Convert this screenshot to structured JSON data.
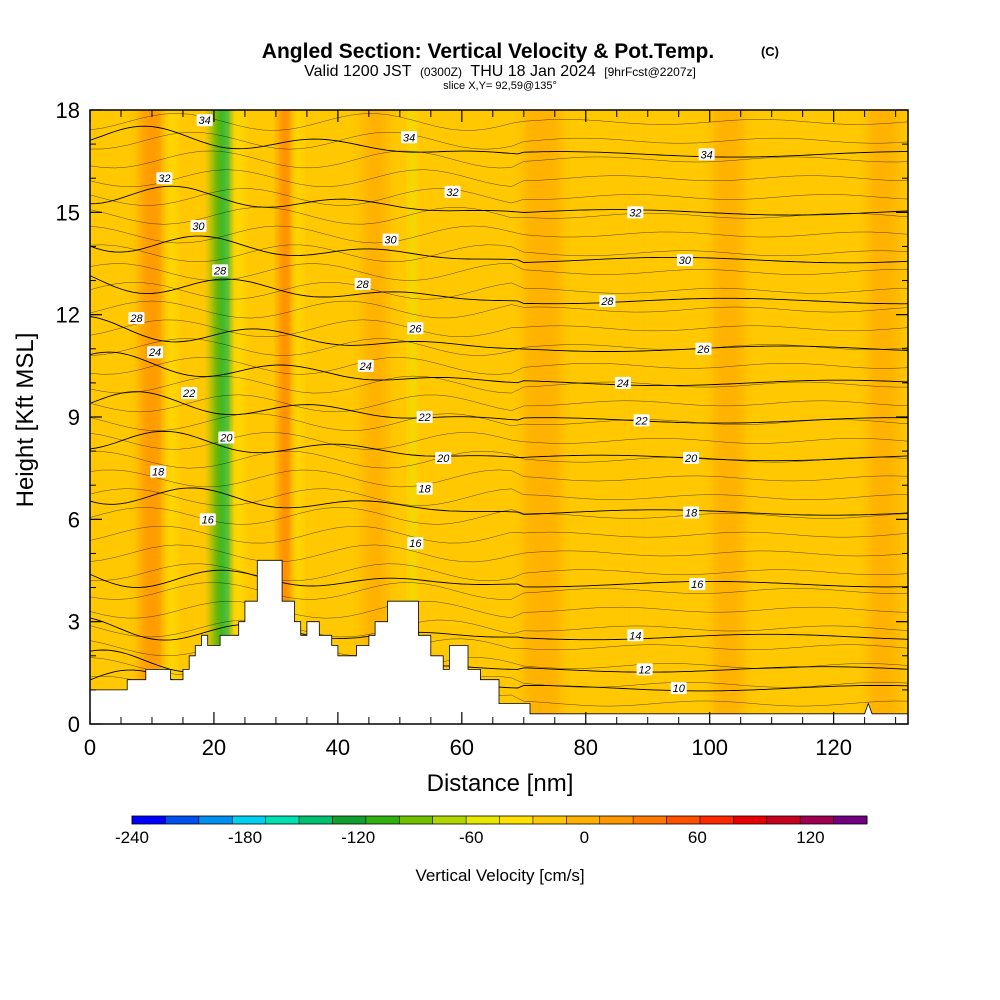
{
  "chart_data": {
    "type": "heatmap",
    "title": "Angled Section: Vertical Velocity & Pot.Temp.",
    "title_unit": "(C)",
    "subtitle": {
      "valid": "Valid 1200 JST",
      "utc": "(0300Z)",
      "date": "THU 18 Jan 2024",
      "forecast": "[9hrFcst@2207z]"
    },
    "slice_text": "slice X,Y= 92,59@135°",
    "xlabel": "Distance [nm]",
    "ylabel": "Height [Kft MSL]",
    "xlim": [
      0,
      132
    ],
    "ylim": [
      0,
      18
    ],
    "x_ticks": [
      0,
      20,
      40,
      60,
      80,
      100,
      120
    ],
    "y_ticks": [
      0,
      3,
      6,
      9,
      12,
      15,
      18
    ],
    "colorbar": {
      "label": "Vertical Velocity [cm/s]",
      "min": -240,
      "max": 150,
      "step": 20,
      "tick_values": [
        -240,
        -180,
        -120,
        -60,
        0,
        60,
        120
      ],
      "colors": [
        "#0000ff",
        "#0050f0",
        "#0090f0",
        "#00d0f0",
        "#00e0b0",
        "#00c070",
        "#10a030",
        "#30b010",
        "#70c000",
        "#b0d800",
        "#e8e800",
        "#ffe000",
        "#ffc800",
        "#ffb000",
        "#ff9800",
        "#ff7800",
        "#ff5000",
        "#ff2800",
        "#e80000",
        "#c80020",
        "#a00050",
        "#700080"
      ]
    },
    "grid": false,
    "velocity_bands": [
      {
        "x": 10,
        "width": 4,
        "value": 55
      },
      {
        "x": 13,
        "width": 1.5,
        "value": -20
      },
      {
        "x": 21,
        "width": 2.4,
        "value": -100
      },
      {
        "x": 22,
        "width": 1,
        "value": -140
      },
      {
        "x": 24,
        "width": 1.5,
        "value": -20
      },
      {
        "x": 31.5,
        "width": 1.8,
        "value": 60
      },
      {
        "x": 33.5,
        "width": 1.2,
        "value": -20
      },
      {
        "x": 46,
        "width": 4,
        "value": 30
      },
      {
        "x": 52,
        "width": 1,
        "value": -30
      },
      {
        "x": 73,
        "width": 6,
        "value": 30
      },
      {
        "x": 85,
        "width": 6,
        "value": 12
      },
      {
        "x": 103,
        "width": 5,
        "value": 25
      },
      {
        "x": 128,
        "width": 5,
        "value": 25
      }
    ],
    "terrain": [
      [
        0,
        1.0
      ],
      [
        6,
        1.0
      ],
      [
        6,
        1.3
      ],
      [
        9,
        1.3
      ],
      [
        9,
        1.6
      ],
      [
        13,
        1.6
      ],
      [
        13,
        1.3
      ],
      [
        15,
        1.3
      ],
      [
        15,
        1.6
      ],
      [
        16,
        1.6
      ],
      [
        16,
        2.0
      ],
      [
        17,
        2.0
      ],
      [
        17,
        2.3
      ],
      [
        18,
        2.3
      ],
      [
        18,
        2.6
      ],
      [
        19,
        2.6
      ],
      [
        19,
        2.3
      ],
      [
        21,
        2.3
      ],
      [
        21,
        2.6
      ],
      [
        24,
        2.6
      ],
      [
        24,
        3.0
      ],
      [
        25,
        3.0
      ],
      [
        25,
        3.6
      ],
      [
        27,
        3.6
      ],
      [
        27,
        4.8
      ],
      [
        31,
        4.8
      ],
      [
        31,
        3.6
      ],
      [
        33,
        3.6
      ],
      [
        33,
        3.0
      ],
      [
        34,
        3.0
      ],
      [
        34,
        2.6
      ],
      [
        35,
        2.6
      ],
      [
        35,
        3.0
      ],
      [
        37,
        3.0
      ],
      [
        37,
        2.6
      ],
      [
        39,
        2.6
      ],
      [
        39,
        2.3
      ],
      [
        40,
        2.3
      ],
      [
        40,
        2.0
      ],
      [
        43,
        2.0
      ],
      [
        43,
        2.3
      ],
      [
        45,
        2.3
      ],
      [
        45,
        2.6
      ],
      [
        46,
        2.6
      ],
      [
        46,
        3.0
      ],
      [
        48,
        3.0
      ],
      [
        48,
        3.6
      ],
      [
        53,
        3.6
      ],
      [
        53,
        2.6
      ],
      [
        55,
        2.6
      ],
      [
        55,
        2.0
      ],
      [
        57,
        2.0
      ],
      [
        57,
        1.6
      ],
      [
        58,
        1.6
      ],
      [
        58,
        2.3
      ],
      [
        61,
        2.3
      ],
      [
        61,
        1.6
      ],
      [
        63,
        1.6
      ],
      [
        63,
        1.3
      ],
      [
        66,
        1.3
      ],
      [
        66,
        0.6
      ],
      [
        71,
        0.6
      ],
      [
        71,
        0.3
      ],
      [
        125,
        0.3
      ],
      [
        125.6,
        0.6
      ],
      [
        126.2,
        0.3
      ],
      [
        132,
        0.3
      ]
    ],
    "theta_contours": [
      {
        "value": 10,
        "y": 1.05,
        "label_x": 95
      },
      {
        "value": 12,
        "y": 1.6,
        "label_x": 89
      },
      {
        "value": 14,
        "y": 2.55,
        "label_x": 87
      },
      {
        "value": 16,
        "y": 4.1,
        "label_x": 98
      },
      {
        "value": 18,
        "y": 6.2,
        "label_x": 97
      },
      {
        "value": 20,
        "y": 7.8,
        "label_x": 97
      },
      {
        "value": 22,
        "y": 8.9,
        "label_x": 88
      },
      {
        "value": 24,
        "y": 10.0,
        "label_x": 87
      },
      {
        "value": 26,
        "y": 11.0,
        "label_x": 101
      },
      {
        "value": 28,
        "y": 12.4,
        "label_x": 84
      },
      {
        "value": 30,
        "y": 13.6,
        "label_x": 96
      },
      {
        "value": 32,
        "y": 15.0,
        "label_x": 90
      },
      {
        "value": 34,
        "y": 16.7,
        "label_x": 101
      }
    ],
    "contour_labels": [
      {
        "text": "34",
        "x": 18.5,
        "y": 17.7
      },
      {
        "text": "34",
        "x": 51.5,
        "y": 17.2
      },
      {
        "text": "34",
        "x": 99.5,
        "y": 16.7
      },
      {
        "text": "32",
        "x": 12,
        "y": 16.0
      },
      {
        "text": "32",
        "x": 58.5,
        "y": 15.6
      },
      {
        "text": "32",
        "x": 88,
        "y": 15.0
      },
      {
        "text": "30",
        "x": 17.5,
        "y": 14.6
      },
      {
        "text": "30",
        "x": 48.5,
        "y": 14.2
      },
      {
        "text": "30",
        "x": 96,
        "y": 13.6
      },
      {
        "text": "28",
        "x": 21,
        "y": 13.3
      },
      {
        "text": "28",
        "x": 44,
        "y": 12.9
      },
      {
        "text": "28",
        "x": 83.5,
        "y": 12.4
      },
      {
        "text": "28",
        "x": 7.5,
        "y": 11.9
      },
      {
        "text": "26",
        "x": 52.5,
        "y": 11.6
      },
      {
        "text": "26",
        "x": 99,
        "y": 11.0
      },
      {
        "text": "24",
        "x": 10.5,
        "y": 10.9
      },
      {
        "text": "24",
        "x": 44.5,
        "y": 10.5
      },
      {
        "text": "24",
        "x": 86,
        "y": 10.0
      },
      {
        "text": "22",
        "x": 16,
        "y": 9.7
      },
      {
        "text": "22",
        "x": 54,
        "y": 9.0
      },
      {
        "text": "22",
        "x": 89,
        "y": 8.9
      },
      {
        "text": "20",
        "x": 22,
        "y": 8.4
      },
      {
        "text": "20",
        "x": 57,
        "y": 7.8
      },
      {
        "text": "20",
        "x": 97,
        "y": 7.8
      },
      {
        "text": "18",
        "x": 11,
        "y": 7.4
      },
      {
        "text": "18",
        "x": 54,
        "y": 6.9
      },
      {
        "text": "18",
        "x": 97,
        "y": 6.2
      },
      {
        "text": "16",
        "x": 19,
        "y": 6.0
      },
      {
        "text": "16",
        "x": 52.5,
        "y": 5.3
      },
      {
        "text": "16",
        "x": 98,
        "y": 4.1
      },
      {
        "text": "14",
        "x": 88,
        "y": 2.6
      },
      {
        "text": "12",
        "x": 89.5,
        "y": 1.6
      },
      {
        "text": "10",
        "x": 95,
        "y": 1.05
      }
    ]
  }
}
